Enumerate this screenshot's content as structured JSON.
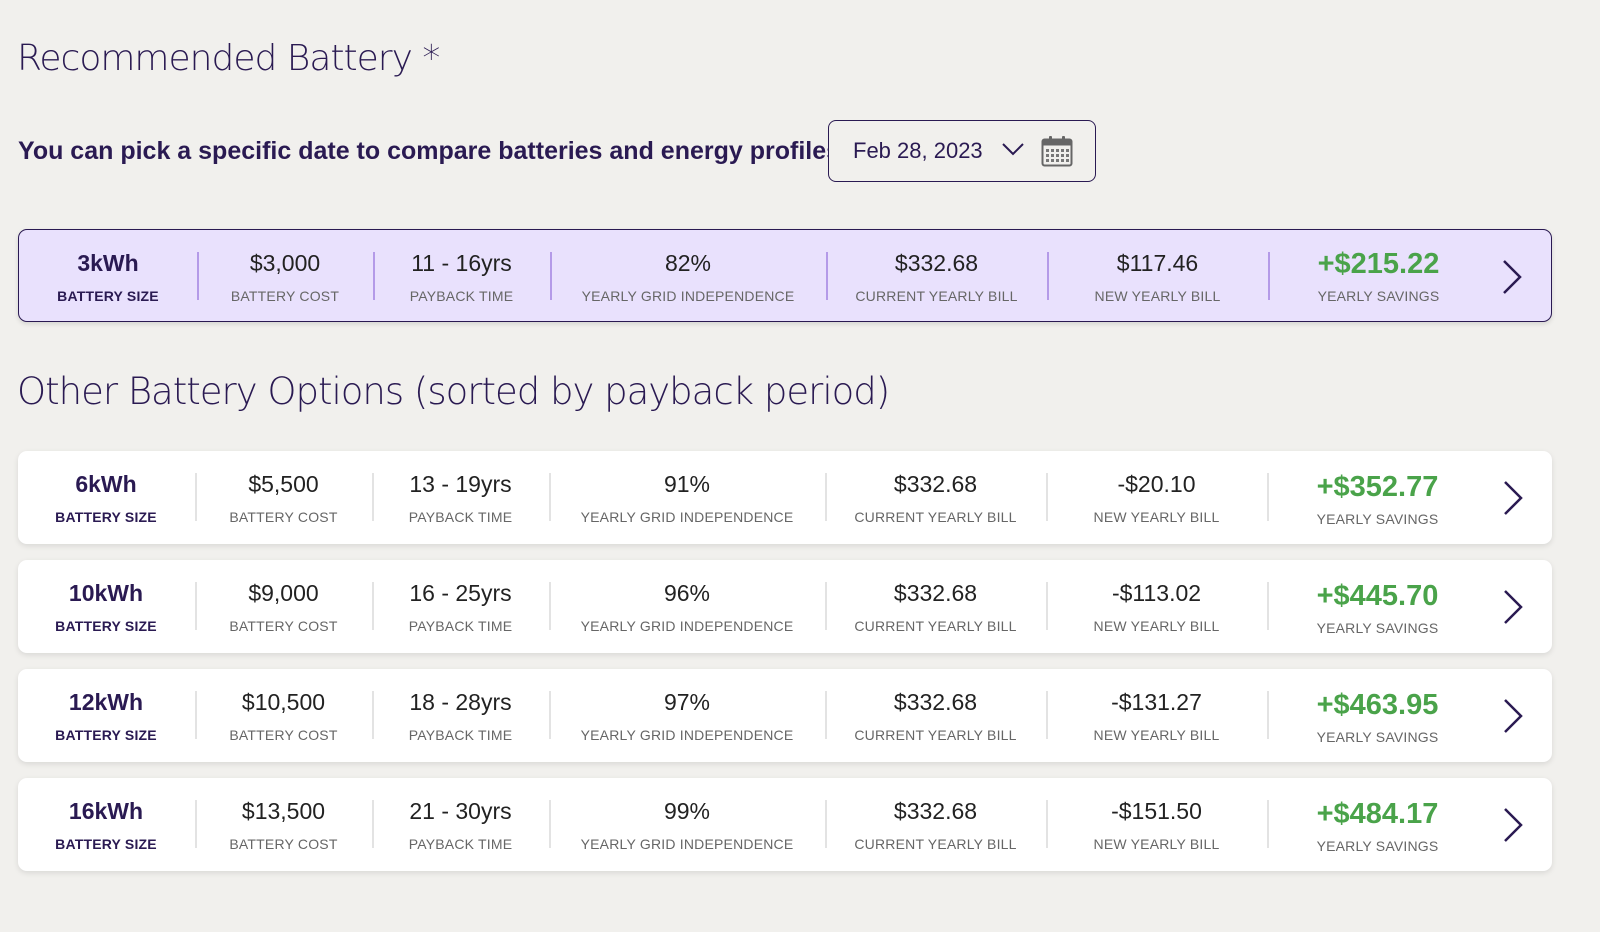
{
  "page": {
    "title": "Recommended Battery *",
    "date_prompt": "You can pick a specific date to compare batteries and energy profiles:",
    "other_title": "Other Battery Options (sorted by payback period)"
  },
  "date_picker": {
    "value": "Feb 28, 2023",
    "chevron_icon": "chevron-down-icon",
    "calendar_icon": "calendar-icon"
  },
  "labels": {
    "battery_size": "BATTERY SIZE",
    "battery_cost": "BATTERY COST",
    "payback_time": "PAYBACK TIME",
    "grid_independence": "YEARLY GRID INDEPENDENCE",
    "current_bill": "CURRENT YEARLY BILL",
    "new_bill": "NEW YEARLY BILL",
    "savings": "YEARLY SAVINGS"
  },
  "recommended": {
    "size": "3kWh",
    "cost": "$3,000",
    "payback": "11 - 16yrs",
    "independence": "82%",
    "current_bill": "$332.68",
    "new_bill": "$117.46",
    "savings": "+$215.22"
  },
  "options": [
    {
      "size": "6kWh",
      "cost": "$5,500",
      "payback": "13 - 19yrs",
      "independence": "91%",
      "current_bill": "$332.68",
      "new_bill": "-$20.10",
      "savings": "+$352.77"
    },
    {
      "size": "10kWh",
      "cost": "$9,000",
      "payback": "16 - 25yrs",
      "independence": "96%",
      "current_bill": "$332.68",
      "new_bill": "-$113.02",
      "savings": "+$445.70"
    },
    {
      "size": "12kWh",
      "cost": "$10,500",
      "payback": "18 - 28yrs",
      "independence": "97%",
      "current_bill": "$332.68",
      "new_bill": "-$131.27",
      "savings": "+$463.95"
    },
    {
      "size": "16kWh",
      "cost": "$13,500",
      "payback": "21 - 30yrs",
      "independence": "99%",
      "current_bill": "$332.68",
      "new_bill": "-$151.50",
      "savings": "+$484.17"
    }
  ],
  "colors": {
    "brand": "#2a1a52",
    "recommended_bg": "#e9e1fd",
    "savings": "#4aa34a",
    "page_bg": "#f1f0ed"
  }
}
